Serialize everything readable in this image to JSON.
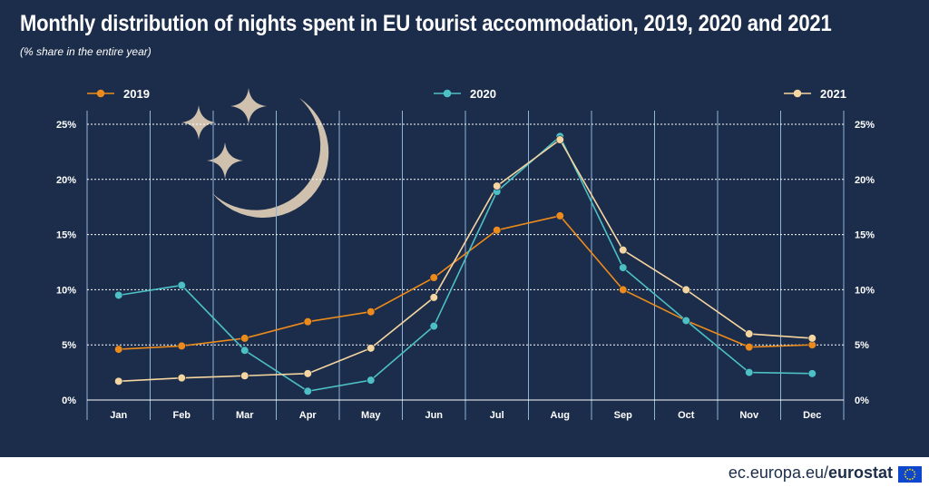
{
  "header": {
    "title": "Monthly distribution of nights spent in EU tourist accommodation, 2019, 2020 and 2021",
    "subtitle": "(% share in the entire year)"
  },
  "footer": {
    "source_host": "ec.europa.eu/",
    "source_brand": "eurostat"
  },
  "colors": {
    "background": "#1b2d4a",
    "series_2019": "#ec8b1b",
    "series_2020": "#4cc0c4",
    "series_2021": "#f5d5a0",
    "moon": "#cfc1ae"
  },
  "icons": [
    "moon-icon",
    "star-icon",
    "eu-flag-icon"
  ],
  "chart_data": {
    "type": "line",
    "title": "Monthly distribution of nights spent in EU tourist accommodation, 2019, 2020 and 2021",
    "subtitle": "(% share in the entire year)",
    "xlabel": "",
    "ylabel": "",
    "ylim": [
      0,
      25
    ],
    "y_ticks": [
      "0%",
      "5%",
      "10%",
      "15%",
      "20%",
      "25%"
    ],
    "grid": true,
    "legend": "top",
    "categories": [
      "Jan",
      "Feb",
      "Mar",
      "Apr",
      "May",
      "Jun",
      "Jul",
      "Aug",
      "Sep",
      "Oct",
      "Nov",
      "Dec"
    ],
    "series": [
      {
        "name": "2019",
        "color": "#ec8b1b",
        "values": [
          4.6,
          4.9,
          5.6,
          7.1,
          8.0,
          11.1,
          15.4,
          16.7,
          10.0,
          7.2,
          4.8,
          5.0
        ]
      },
      {
        "name": "2020",
        "color": "#4cc0c4",
        "values": [
          9.5,
          10.4,
          4.5,
          0.8,
          1.8,
          6.7,
          18.9,
          23.9,
          12.0,
          7.2,
          2.5,
          2.4
        ]
      },
      {
        "name": "2021",
        "color": "#f5d5a0",
        "values": [
          1.7,
          2.0,
          2.2,
          2.4,
          4.7,
          9.3,
          19.4,
          23.6,
          13.6,
          10.0,
          6.0,
          5.6
        ]
      }
    ]
  }
}
